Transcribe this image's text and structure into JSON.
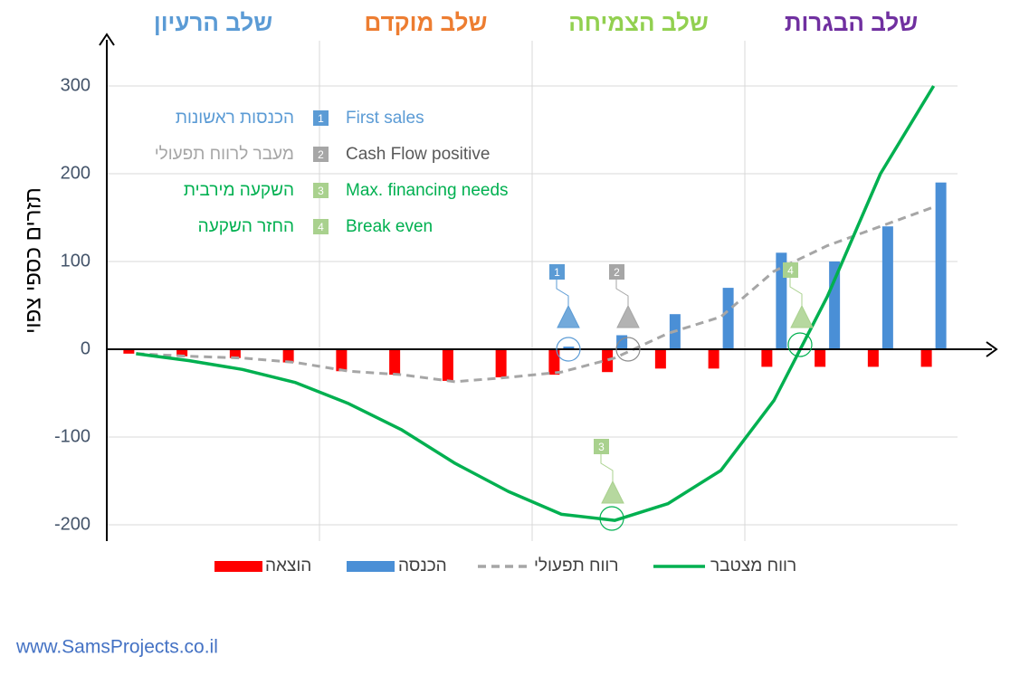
{
  "chart_data": {
    "type": "combo",
    "phases": [
      {
        "label": "שלב הרעיון",
        "color": "#5b9bd5"
      },
      {
        "label": "שלב מוקדם",
        "color": "#ed7d31"
      },
      {
        "label": "שלב הצמיחה",
        "color": "#92d050"
      },
      {
        "label": "שלב הבגרות",
        "color": "#7030a0"
      }
    ],
    "y_label": "תזרים כספי צפוי",
    "categories": [
      null,
      null,
      null,
      null,
      null,
      null,
      null,
      null,
      null,
      null,
      null,
      null,
      null,
      null,
      null,
      null
    ],
    "series": [
      {
        "name": "הוצאה",
        "type": "bar",
        "color": "#ff0000",
        "values": [
          -5,
          -8,
          -10,
          -15,
          -25,
          -29,
          -36,
          -32,
          -29,
          -26,
          -22,
          -22,
          -20,
          -20,
          -20,
          -20
        ]
      },
      {
        "name": "הכנסה",
        "type": "bar",
        "color": "#4a8fd6",
        "values": [
          null,
          null,
          null,
          null,
          null,
          null,
          null,
          null,
          3,
          16,
          40,
          70,
          110,
          100,
          140,
          190
        ]
      },
      {
        "name": "רווח תפעולי",
        "type": "line",
        "dashed": true,
        "color": "#a6a6a6",
        "values": [
          -5,
          -8,
          -10,
          -15,
          -25,
          -29,
          -37,
          -32,
          -26,
          -10,
          18,
          37,
          89,
          118,
          140,
          162
        ]
      },
      {
        "name": "רווח מצטבר",
        "type": "line",
        "dashed": false,
        "color": "#00b050",
        "values": [
          -5,
          -13,
          -23,
          -38,
          -62,
          -92,
          -130,
          -162,
          -188,
          -195,
          -176,
          -138,
          -58,
          60,
          200,
          300
        ]
      }
    ],
    "ylim": [
      -220,
      350
    ],
    "yticks": [
      -200,
      -100,
      0,
      100,
      200,
      300
    ],
    "grid": true,
    "milestones": [
      {
        "number": 1,
        "label": "הכנסות ראשונות",
        "label_en": "First sales",
        "color": "#5b9bd5",
        "text_color": "#5b9bd5"
      },
      {
        "number": 2,
        "label": "מעבר לרווח תפעולי",
        "label_en": "Cash Flow positive",
        "color": "#a6a6a6",
        "text_color": "#595959"
      },
      {
        "number": 3,
        "label": "השקעה מירבית",
        "label_en": "Max. financing needs",
        "color": "#a9d18e",
        "text_color": "#00b050"
      },
      {
        "number": 4,
        "label": "החזר השקעה",
        "label_en": "Break even",
        "color": "#a9d18e",
        "text_color": "#00b050"
      }
    ]
  },
  "footer": "www.SamsProjects.co.il"
}
